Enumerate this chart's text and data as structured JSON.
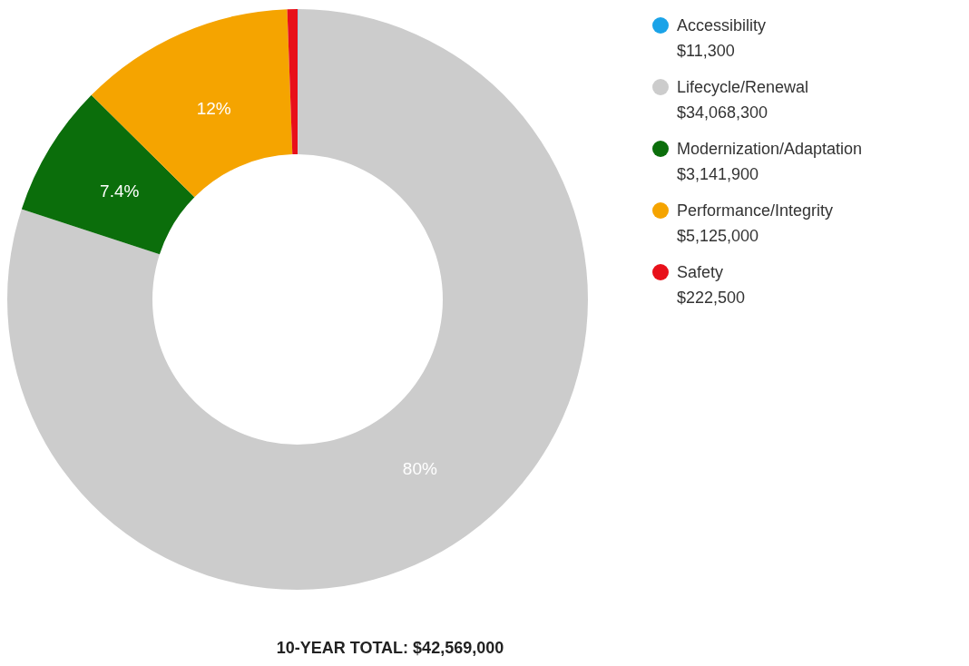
{
  "chart_data": {
    "type": "donut",
    "categories": [
      "Accessibility\n$11,300",
      "Lifecycle/Renewal\n$34,068,300",
      "Modernization/Adaptation\n$3,141,900",
      "Performance/Integrity\n$5,125,000",
      "Safety\n$222,500"
    ],
    "values": [
      0.03,
      80,
      7.4,
      12,
      0.57
    ],
    "colors": [
      "#1aa3e8",
      "#cccccc",
      "#0b6e0b",
      "#f5a400",
      "#e8101a"
    ],
    "value_labels": [
      null,
      "80%",
      "7.4%",
      "12%",
      null
    ],
    "legend": "right",
    "annotations": [
      "10-YEAR TOTAL: $42,569,000"
    ]
  }
}
